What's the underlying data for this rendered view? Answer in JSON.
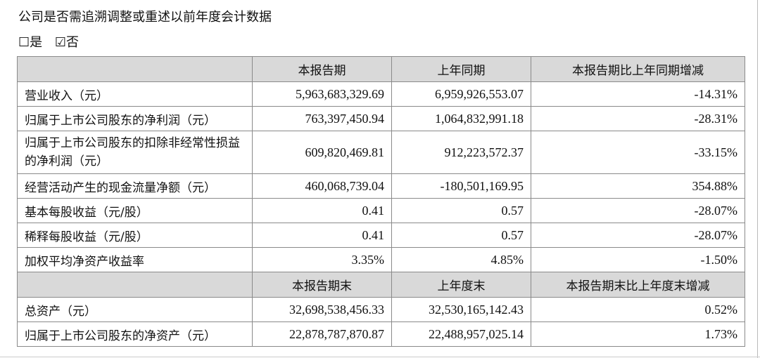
{
  "title": "公司是否需追溯调整或重述以前年度会计数据",
  "options": [
    {
      "label": "是",
      "checked": false,
      "symbol": "☐"
    },
    {
      "label": "否",
      "checked": true,
      "symbol": "☑"
    }
  ],
  "header1": [
    "",
    "本报告期",
    "上年同期",
    "本报告期比上年同期增减"
  ],
  "rows1": [
    [
      "营业收入（元）",
      "5,963,683,329.69",
      "6,959,926,553.07",
      "-14.31%"
    ],
    [
      "归属于上市公司股东的净利润（元）",
      "763,397,450.94",
      "1,064,832,991.18",
      "-28.31%"
    ],
    [
      "归属于上市公司股东的扣除非经常性损益的净利润（元）",
      "609,820,469.81",
      "912,223,572.37",
      "-33.15%"
    ],
    [
      "经营活动产生的现金流量净额（元）",
      "460,068,739.04",
      "-180,501,169.95",
      "354.88%"
    ],
    [
      "基本每股收益（元/股）",
      "0.41",
      "0.57",
      "-28.07%"
    ],
    [
      "稀释每股收益（元/股）",
      "0.41",
      "0.57",
      "-28.07%"
    ],
    [
      "加权平均净资产收益率",
      "3.35%",
      "4.85%",
      "-1.50%"
    ]
  ],
  "header2": [
    "",
    "本报告期末",
    "上年度末",
    "本报告期末比上年度末增减"
  ],
  "rows2": [
    [
      "总资产（元）",
      "32,698,538,456.33",
      "32,530,165,142.43",
      "0.52%"
    ],
    [
      "归属于上市公司股东的净资产（元）",
      "22,878,787,870.87",
      "22,488,957,025.14",
      "1.73%"
    ]
  ]
}
